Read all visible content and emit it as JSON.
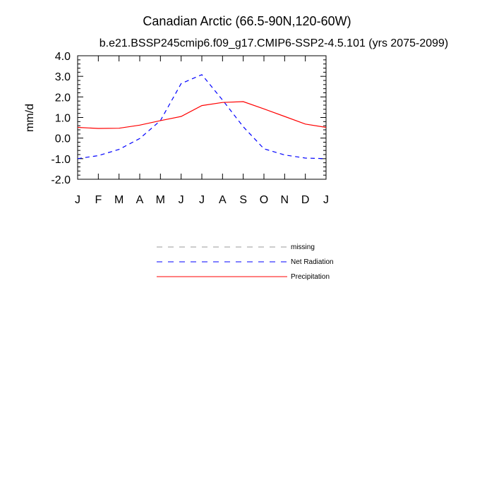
{
  "chart_data": {
    "type": "line",
    "title": "Canadian Arctic (66.5-90N,120-60W)",
    "subtitle": "b.e21.BSSP245cmip6.f09_g17.CMIP6-SSP2-4.5.101 (yrs 2075-2099)",
    "xlabel": "",
    "ylabel": "mm/d",
    "ylim": [
      -2.0,
      4.0
    ],
    "y_ticks": [
      "4.0",
      "3.0",
      "2.0",
      "1.0",
      "0.0",
      "-1.0",
      "-2.0"
    ],
    "y_tick_values": [
      4.0,
      3.0,
      2.0,
      1.0,
      0.0,
      -1.0,
      -2.0
    ],
    "categories": [
      "J",
      "F",
      "M",
      "A",
      "M",
      "J",
      "J",
      "A",
      "S",
      "O",
      "N",
      "D",
      "J"
    ],
    "series": [
      {
        "name": "Net Radiation",
        "color": "#0000ff",
        "dash": "dashed",
        "values": [
          -1.0,
          -0.85,
          -0.55,
          -0.02,
          0.85,
          2.65,
          3.08,
          1.85,
          0.55,
          -0.52,
          -0.82,
          -0.97,
          -1.0
        ]
      },
      {
        "name": "Precipitation",
        "color": "#ff0000",
        "dash": "solid",
        "values": [
          0.52,
          0.47,
          0.48,
          0.63,
          0.85,
          1.05,
          1.58,
          1.73,
          1.77,
          1.42,
          1.05,
          0.68,
          0.52
        ]
      }
    ],
    "legend": [
      {
        "label": "missing",
        "color": "#999999",
        "dash": "dashed"
      },
      {
        "label": "Net Radiation",
        "color": "#0000ff",
        "dash": "dashed"
      },
      {
        "label": "Precipitation",
        "color": "#ff0000",
        "dash": "solid"
      }
    ],
    "legend_position": "below"
  }
}
